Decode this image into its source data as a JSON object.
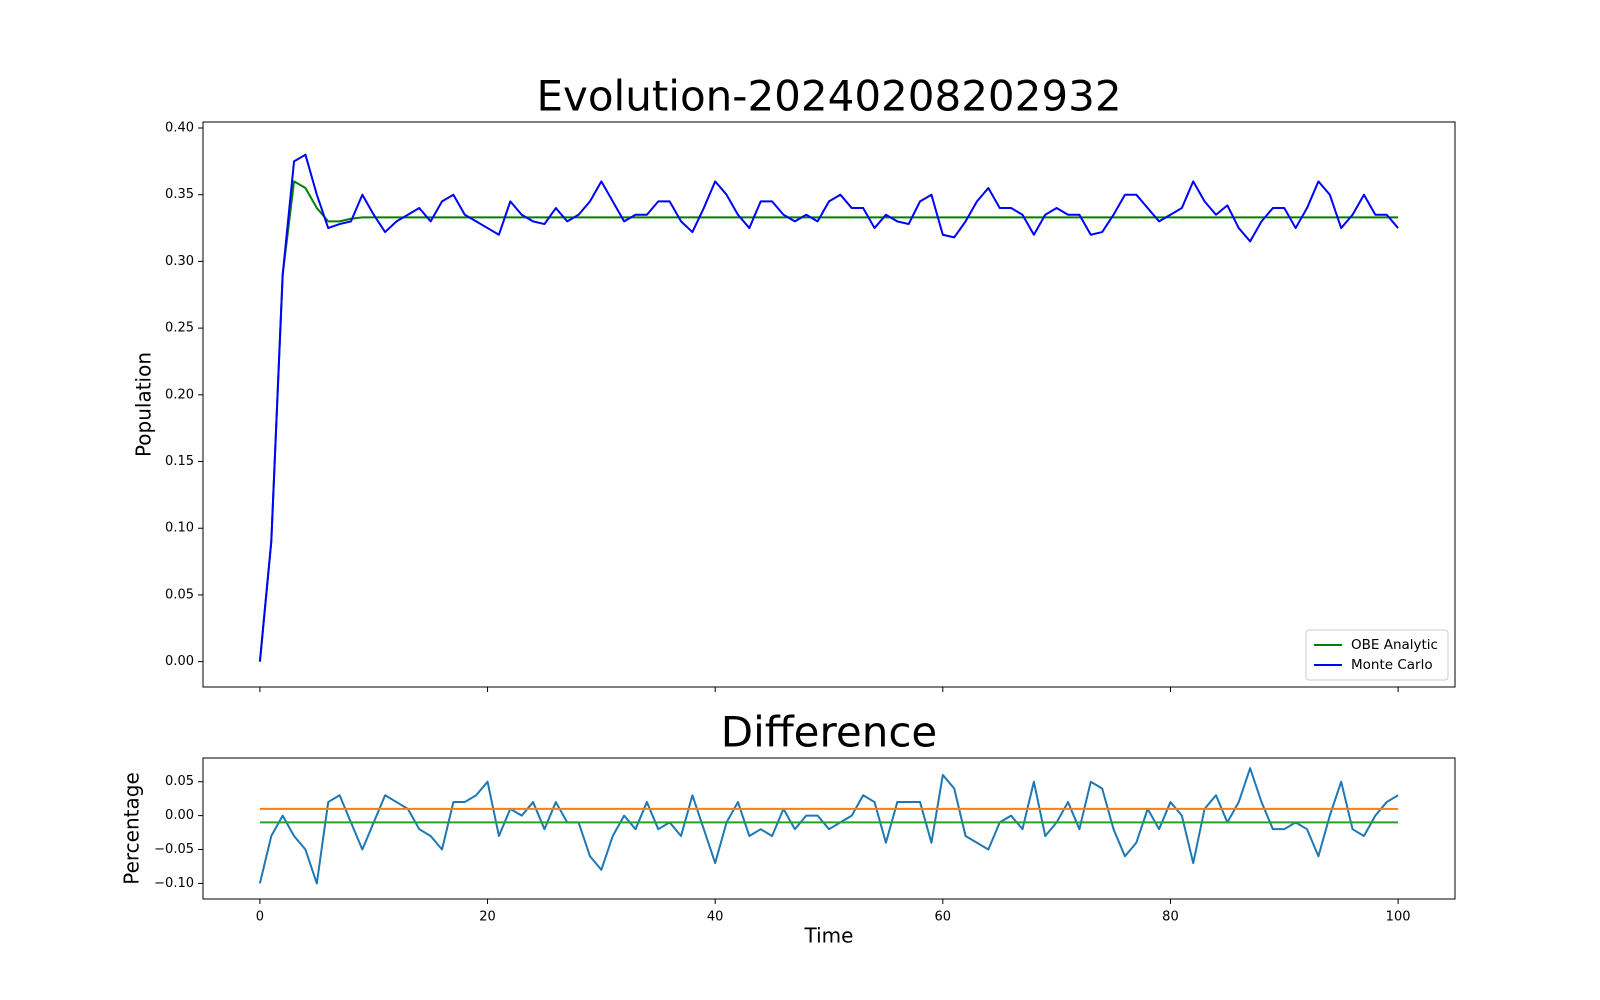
{
  "chart_data": [
    {
      "type": "line",
      "title": "Evolution-20240208202932",
      "ylabel": "Population",
      "x": [
        0,
        1,
        2,
        3,
        4,
        5,
        6,
        7,
        8,
        9,
        10,
        11,
        12,
        13,
        14,
        15,
        16,
        17,
        18,
        19,
        20,
        21,
        22,
        23,
        24,
        25,
        26,
        27,
        28,
        29,
        30,
        31,
        32,
        33,
        34,
        35,
        36,
        37,
        38,
        39,
        40,
        41,
        42,
        43,
        44,
        45,
        46,
        47,
        48,
        49,
        50,
        51,
        52,
        53,
        54,
        55,
        56,
        57,
        58,
        59,
        60,
        61,
        62,
        63,
        64,
        65,
        66,
        67,
        68,
        69,
        70,
        71,
        72,
        73,
        74,
        75,
        76,
        77,
        78,
        79,
        80,
        81,
        82,
        83,
        84,
        85,
        86,
        87,
        88,
        89,
        90,
        91,
        92,
        93,
        94,
        95,
        96,
        97,
        98,
        99,
        100
      ],
      "series": [
        {
          "name": "OBE Analytic",
          "color": "#008000",
          "values": [
            0,
            0.09,
            0.29,
            0.36,
            0.355,
            0.34,
            0.33,
            0.33,
            0.332,
            0.333,
            0.333,
            0.333,
            0.333,
            0.333,
            0.333,
            0.333,
            0.333,
            0.333,
            0.333,
            0.333,
            0.333,
            0.333,
            0.333,
            0.333,
            0.333,
            0.333,
            0.333,
            0.333,
            0.333,
            0.333,
            0.333,
            0.333,
            0.333,
            0.333,
            0.333,
            0.333,
            0.333,
            0.333,
            0.333,
            0.333,
            0.333,
            0.333,
            0.333,
            0.333,
            0.333,
            0.333,
            0.333,
            0.333,
            0.333,
            0.333,
            0.333,
            0.333,
            0.333,
            0.333,
            0.333,
            0.333,
            0.333,
            0.333,
            0.333,
            0.333,
            0.333,
            0.333,
            0.333,
            0.333,
            0.333,
            0.333,
            0.333,
            0.333,
            0.333,
            0.333,
            0.333,
            0.333,
            0.333,
            0.333,
            0.333,
            0.333,
            0.333,
            0.333,
            0.333,
            0.333,
            0.333,
            0.333,
            0.333,
            0.333,
            0.333,
            0.333,
            0.333,
            0.333,
            0.333,
            0.333,
            0.333,
            0.333,
            0.333,
            0.333,
            0.333,
            0.333,
            0.333,
            0.333,
            0.333,
            0.333,
            0.333
          ]
        },
        {
          "name": "Monte Carlo",
          "color": "#0000ff",
          "values": [
            0,
            0.09,
            0.29,
            0.375,
            0.38,
            0.35,
            0.325,
            0.328,
            0.33,
            0.35,
            0.335,
            0.322,
            0.33,
            0.335,
            0.34,
            0.33,
            0.345,
            0.35,
            0.335,
            0.33,
            0.325,
            0.32,
            0.345,
            0.335,
            0.33,
            0.328,
            0.34,
            0.33,
            0.335,
            0.345,
            0.36,
            0.345,
            0.33,
            0.335,
            0.335,
            0.345,
            0.345,
            0.33,
            0.322,
            0.34,
            0.36,
            0.35,
            0.335,
            0.325,
            0.345,
            0.345,
            0.335,
            0.33,
            0.335,
            0.33,
            0.345,
            0.35,
            0.34,
            0.34,
            0.325,
            0.335,
            0.33,
            0.328,
            0.345,
            0.35,
            0.32,
            0.318,
            0.33,
            0.345,
            0.355,
            0.34,
            0.34,
            0.335,
            0.32,
            0.335,
            0.34,
            0.335,
            0.335,
            0.32,
            0.322,
            0.335,
            0.35,
            0.35,
            0.34,
            0.33,
            0.335,
            0.34,
            0.36,
            0.345,
            0.335,
            0.342,
            0.325,
            0.315,
            0.33,
            0.34,
            0.34,
            0.325,
            0.34,
            0.36,
            0.35,
            0.325,
            0.335,
            0.35,
            0.335,
            0.335,
            0.325
          ]
        }
      ],
      "xlim": [
        -5,
        105
      ],
      "ylim": [
        -0.019,
        0.4045
      ],
      "xticks": [
        0,
        20,
        40,
        60,
        80,
        100
      ],
      "yticks": [
        {
          "value": 0,
          "label": "0.00"
        },
        {
          "value": 0.05,
          "label": "0.05"
        },
        {
          "value": 0.1,
          "label": "0.10"
        },
        {
          "value": 0.15,
          "label": "0.15"
        },
        {
          "value": 0.2,
          "label": "0.20"
        },
        {
          "value": 0.25,
          "label": "0.25"
        },
        {
          "value": 0.3,
          "label": "0.30"
        },
        {
          "value": 0.35,
          "label": "0.35"
        },
        {
          "value": 0.4,
          "label": "0.40"
        }
      ],
      "legend": "lower right"
    },
    {
      "type": "line",
      "title": "Difference",
      "ylabel": "Percentage",
      "xlabel": "Time",
      "x": [
        0,
        1,
        2,
        3,
        4,
        5,
        6,
        7,
        8,
        9,
        10,
        11,
        12,
        13,
        14,
        15,
        16,
        17,
        18,
        19,
        20,
        21,
        22,
        23,
        24,
        25,
        26,
        27,
        28,
        29,
        30,
        31,
        32,
        33,
        34,
        35,
        36,
        37,
        38,
        39,
        40,
        41,
        42,
        43,
        44,
        45,
        46,
        47,
        48,
        49,
        50,
        51,
        52,
        53,
        54,
        55,
        56,
        57,
        58,
        59,
        60,
        61,
        62,
        63,
        64,
        65,
        66,
        67,
        68,
        69,
        70,
        71,
        72,
        73,
        74,
        75,
        76,
        77,
        78,
        79,
        80,
        81,
        82,
        83,
        84,
        85,
        86,
        87,
        88,
        89,
        90,
        91,
        92,
        93,
        94,
        95,
        96,
        97,
        98,
        99,
        100
      ],
      "series": [
        {
          "color": "#1f77b4",
          "values": [
            -0.1,
            -0.03,
            0,
            -0.03,
            -0.05,
            -0.1,
            0.02,
            0.03,
            -0.01,
            -0.05,
            -0.01,
            0.03,
            0.02,
            0.01,
            -0.02,
            -0.03,
            -0.05,
            0.02,
            0.02,
            0.03,
            0.05,
            -0.03,
            0.01,
            0,
            0.02,
            -0.02,
            0.02,
            -0.01,
            -0.01,
            -0.06,
            -0.08,
            -0.03,
            0,
            -0.02,
            0.02,
            -0.02,
            -0.01,
            -0.03,
            0.03,
            -0.02,
            -0.07,
            -0.01,
            0.02,
            -0.03,
            -0.02,
            -0.03,
            0.01,
            -0.02,
            0,
            0,
            -0.02,
            -0.01,
            0,
            0.03,
            0.02,
            -0.04,
            0.02,
            0.02,
            0.02,
            -0.04,
            0.06,
            0.04,
            -0.03,
            -0.04,
            -0.05,
            -0.01,
            0,
            -0.02,
            0.05,
            -0.03,
            -0.01,
            0.02,
            -0.02,
            0.05,
            0.04,
            -0.02,
            -0.06,
            -0.04,
            0.01,
            -0.02,
            0.02,
            0,
            -0.07,
            0.01,
            0.03,
            -0.01,
            0.02,
            0.07,
            0.02,
            -0.02,
            -0.02,
            -0.01,
            -0.02,
            -0.06,
            0,
            0.05,
            -0.02,
            -0.03,
            0,
            0.02,
            0.03
          ]
        },
        {
          "color": "#ff7f0e",
          "x": [
            0,
            100
          ],
          "values": [
            0.01,
            0.01
          ]
        },
        {
          "color": "#2ca02c",
          "x": [
            0,
            100
          ],
          "values": [
            -0.01,
            -0.01
          ]
        }
      ],
      "xlim": [
        -5,
        105
      ],
      "ylim": [
        -0.123,
        0.085
      ],
      "xticks": [
        0,
        20,
        40,
        60,
        80,
        100
      ],
      "yticks": [
        {
          "value": -0.1,
          "label": "−0.10"
        },
        {
          "value": -0.05,
          "label": "−0.05"
        },
        {
          "value": 0,
          "label": "0.00"
        },
        {
          "value": 0.05,
          "label": "0.05"
        }
      ]
    }
  ]
}
